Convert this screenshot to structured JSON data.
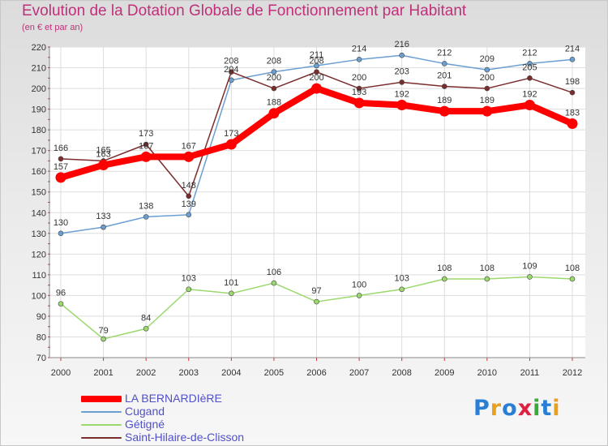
{
  "chart_data": {
    "type": "line",
    "title": "Evolution de la Dotation Globale de Fonctionnement par Habitant",
    "subtitle": "(en € et par an)",
    "xlabel": "",
    "ylabel": "",
    "x": [
      "2000",
      "2001",
      "2002",
      "2003",
      "2004",
      "2005",
      "2006",
      "2007",
      "2008",
      "2009",
      "2010",
      "2011",
      "2012"
    ],
    "ylim": [
      70,
      220
    ],
    "yticks": [
      70,
      80,
      90,
      100,
      110,
      120,
      130,
      140,
      150,
      160,
      170,
      180,
      190,
      200,
      210,
      220
    ],
    "grid": true,
    "legend_position": "bottom-left",
    "series": [
      {
        "name": "LA BERNARDIèRE",
        "color": "#ff0000",
        "values": [
          157,
          163,
          167,
          167,
          173,
          188,
          200,
          193,
          192,
          189,
          189,
          192,
          183
        ]
      },
      {
        "name": "Cugand",
        "color": "#6b9fd2",
        "values": [
          130,
          133,
          138,
          139,
          204,
          208,
          211,
          214,
          216,
          212,
          209,
          212,
          214
        ]
      },
      {
        "name": "Gétigné",
        "color": "#9bd86e",
        "values": [
          96,
          79,
          84,
          103,
          101,
          106,
          97,
          100,
          103,
          108,
          108,
          109,
          108
        ]
      },
      {
        "name": "Saint-Hilaire-de-Clisson",
        "color": "#7a2d2d",
        "values": [
          166,
          165,
          173,
          148,
          208,
          200,
          208,
          200,
          203,
          201,
          200,
          205,
          198
        ]
      }
    ]
  },
  "logo": {
    "text": [
      "P",
      "r",
      "o",
      "x",
      "i",
      "t",
      "i"
    ]
  }
}
